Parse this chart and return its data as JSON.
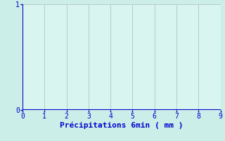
{
  "title": "",
  "xlabel": "Précipitations 6min ( mm )",
  "ylabel": "",
  "xlim": [
    0,
    9
  ],
  "ylim": [
    0,
    1
  ],
  "xticks": [
    0,
    1,
    2,
    3,
    4,
    5,
    6,
    7,
    8,
    9
  ],
  "yticks": [
    0,
    1
  ],
  "fig_bg_color": "#cceee8",
  "plot_bg_color": "#d8f5f0",
  "grid_color": "#aabbbb",
  "axis_color": "#0000cc",
  "label_color": "#0000cc",
  "tick_color": "#0000cc",
  "xlabel_fontsize": 8,
  "tick_fontsize": 7
}
